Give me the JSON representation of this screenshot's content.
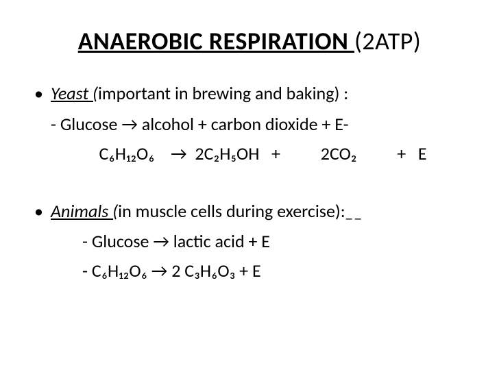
{
  "title": {
    "underlined": "ANAEROBIC RESPIRATION ",
    "tail": " (2ATP)"
  },
  "yeast": {
    "label": "Yeast (",
    "desc": "important in brewing and baking) :",
    "word_eq": " -  Glucose  →  alcohol    +    carbon dioxide  +  E-",
    "chem_eq": "            C₆H₁₂O₆    →  2C₂H₅OH   +          2CO₂          +   E"
  },
  "animals": {
    "label": "Animals (",
    "desc": "in muscle cells during exercise):",
    "tail": "__",
    "word_eq": "- Glucose  →  lactic acid  +  E",
    "chem_eq": "- C₆H₁₂O₆  →  2 C₃H₆O₃    +  E"
  },
  "colors": {
    "text": "#000000",
    "background": "#ffffff"
  },
  "typography": {
    "title_fontsize": 36,
    "body_fontsize": 26,
    "font_family": "Calibri"
  }
}
